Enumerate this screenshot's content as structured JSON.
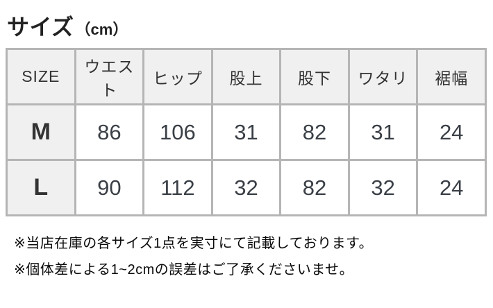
{
  "title": {
    "main": "サイズ",
    "unit": "（cm）"
  },
  "table": {
    "columns": [
      "SIZE",
      "ウエスト",
      "ヒップ",
      "股上",
      "股下",
      "ワタリ",
      "裾幅"
    ],
    "rows": [
      {
        "size": "M",
        "values": [
          "86",
          "106",
          "31",
          "82",
          "31",
          "24"
        ]
      },
      {
        "size": "L",
        "values": [
          "90",
          "112",
          "32",
          "82",
          "32",
          "24"
        ]
      }
    ]
  },
  "notes": [
    "※当店在庫の各サイズ1点を実寸にて記載しております。",
    "※個体差による1~2cmの誤差はご了承くださいませ。"
  ],
  "colors": {
    "header_bg": "#f0f0f0",
    "border": "#b5b5b5",
    "cell_text": "#3a3f46",
    "title_text": "#222222"
  }
}
